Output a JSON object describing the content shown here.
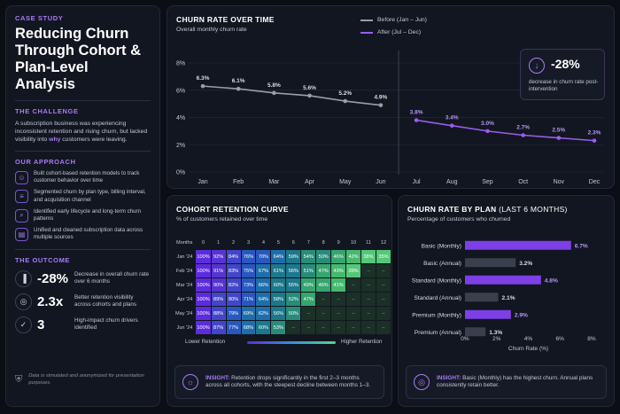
{
  "left": {
    "eyebrow": "CASE STUDY",
    "title": "Reducing Churn Through Cohort & Plan-Level Analysis",
    "challenge_heading": "THE CHALLENGE",
    "challenge_text_a": "A subscription business was experiencing inconsistent retention and rising churn, but lacked visibility into ",
    "challenge_text_hl": "why",
    "challenge_text_b": " customers were leaving.",
    "approach_heading": "OUR APPROACH",
    "approach": [
      {
        "icon": "users-icon",
        "text": "Built cohort-based retention models to track customer behavior over time"
      },
      {
        "icon": "layers-icon",
        "text": "Segmented churn by plan type, billing interval, and acquisition channel"
      },
      {
        "icon": "search-icon",
        "text": "Identified early lifecycle and long-term churn patterns"
      },
      {
        "icon": "database-icon",
        "text": "Unified and cleaned subscription data across multiple sources"
      }
    ],
    "outcome_heading": "THE OUTCOME",
    "outcomes": [
      {
        "icon": "bar-chart-icon",
        "value": "-28%",
        "text": "Decrease in overall churn rate over 6 months"
      },
      {
        "icon": "target-icon",
        "value": "2.3x",
        "text": "Better retention visibility across cohorts and plans"
      },
      {
        "icon": "check-circle-icon",
        "value": "3",
        "text": "High-impact churn drivers identified"
      }
    ],
    "disclaimer": "Data is simulated and anonymized for presentation purposes."
  },
  "churn_panel": {
    "title": "CHURN RATE OVER TIME",
    "subtitle": "Overall monthly churn rate",
    "legend_before": "Before (Jan – Jun)",
    "legend_after": "After (Jul – Dec)",
    "callout_value": "-28%",
    "callout_text": "decrease in churn rate post-intervention"
  },
  "cohort_panel": {
    "title": "COHORT RETENTION CURVE",
    "subtitle": "% of customers retained over time",
    "low_label": "Lower Retention",
    "high_label": "Higher Retention",
    "insight_label": "INSIGHT:",
    "insight_text": " Retention drops significantly in the first 2–3 months across all cohorts, with the steepest decline between months 1–3."
  },
  "plan_panel": {
    "title": "CHURN RATE BY PLAN",
    "title_suffix": " (LAST 6 MONTHS)",
    "subtitle": "Percentage of customers who churned",
    "insight_label": "INSIGHT:",
    "insight_text": " Basic (Monthly) has the highest churn. Annual plans consistently retain better."
  },
  "colors": {
    "accent": "#a67cf5",
    "before_line": "#9a9ea8",
    "after_line": "#9a5cf0"
  },
  "chart_data": [
    {
      "type": "line",
      "title": "CHURN RATE OVER TIME",
      "subtitle": "Overall monthly churn rate",
      "x": [
        "Jan",
        "Feb",
        "Mar",
        "Apr",
        "May",
        "Jun",
        "Jul",
        "Aug",
        "Sep",
        "Oct",
        "Nov",
        "Dec"
      ],
      "ylim": [
        0,
        8
      ],
      "yticks": [
        "0%",
        "2%",
        "4%",
        "6%",
        "8%"
      ],
      "grid": true,
      "legend": "top-center",
      "series": [
        {
          "name": "Before (Jan – Jun)",
          "x": [
            "Jan",
            "Feb",
            "Mar",
            "Apr",
            "May",
            "Jun"
          ],
          "values": [
            6.3,
            6.1,
            5.8,
            5.6,
            5.2,
            4.9
          ],
          "labels": [
            "6.3%",
            "6.1%",
            "5.8%",
            "5.6%",
            "5.2%",
            "4.9%"
          ]
        },
        {
          "name": "After (Jul – Dec)",
          "x": [
            "Jul",
            "Aug",
            "Sep",
            "Oct",
            "Nov",
            "Dec"
          ],
          "values": [
            3.8,
            3.4,
            3.0,
            2.7,
            2.5,
            2.3
          ],
          "labels": [
            "3.8%",
            "3.4%",
            "3.0%",
            "2.7%",
            "2.5%",
            "2.3%"
          ]
        }
      ]
    },
    {
      "type": "heatmap",
      "title": "COHORT RETENTION CURVE",
      "subtitle": "% of customers retained over time",
      "corner_label": "Months",
      "columns": [
        "0",
        "1",
        "2",
        "3",
        "4",
        "5",
        "6",
        "7",
        "8",
        "9",
        "10",
        "11",
        "12"
      ],
      "rows": [
        {
          "label": "Jan '24",
          "values": [
            100,
            92,
            84,
            76,
            70,
            64,
            59,
            54,
            50,
            46,
            42,
            38,
            35
          ]
        },
        {
          "label": "Feb '24",
          "values": [
            100,
            91,
            83,
            75,
            67,
            61,
            56,
            51,
            47,
            43,
            39,
            null,
            null
          ]
        },
        {
          "label": "Mar '24",
          "values": [
            100,
            90,
            82,
            73,
            66,
            60,
            55,
            49,
            46,
            41,
            null,
            null,
            null
          ]
        },
        {
          "label": "Apr '24",
          "values": [
            100,
            89,
            80,
            71,
            64,
            58,
            52,
            47,
            null,
            null,
            null,
            null,
            null
          ]
        },
        {
          "label": "May '24",
          "values": [
            100,
            88,
            79,
            69,
            62,
            56,
            50,
            null,
            null,
            null,
            null,
            null,
            null
          ]
        },
        {
          "label": "Jun '24",
          "values": [
            100,
            87,
            77,
            68,
            60,
            53,
            null,
            null,
            null,
            null,
            null,
            null,
            null
          ]
        }
      ],
      "empty_label": "–"
    },
    {
      "type": "bar",
      "orientation": "horizontal",
      "title": "CHURN RATE BY PLAN (LAST 6 MONTHS)",
      "subtitle": "Percentage of customers who churned",
      "categories": [
        "Basic (Monthly)",
        "Basic (Annual)",
        "Standard (Monthly)",
        "Standard (Annual)",
        "Premium (Monthly)",
        "Premium (Annual)"
      ],
      "values": [
        6.7,
        3.2,
        4.8,
        2.1,
        2.9,
        1.3
      ],
      "labels": [
        "6.7%",
        "3.2%",
        "4.8%",
        "2.1%",
        "2.9%",
        "1.3%"
      ],
      "xlabel": "Churn Rate (%)",
      "xlim": [
        0,
        8
      ],
      "xticks": [
        "0%",
        "2%",
        "4%",
        "6%",
        "8%"
      ]
    }
  ]
}
